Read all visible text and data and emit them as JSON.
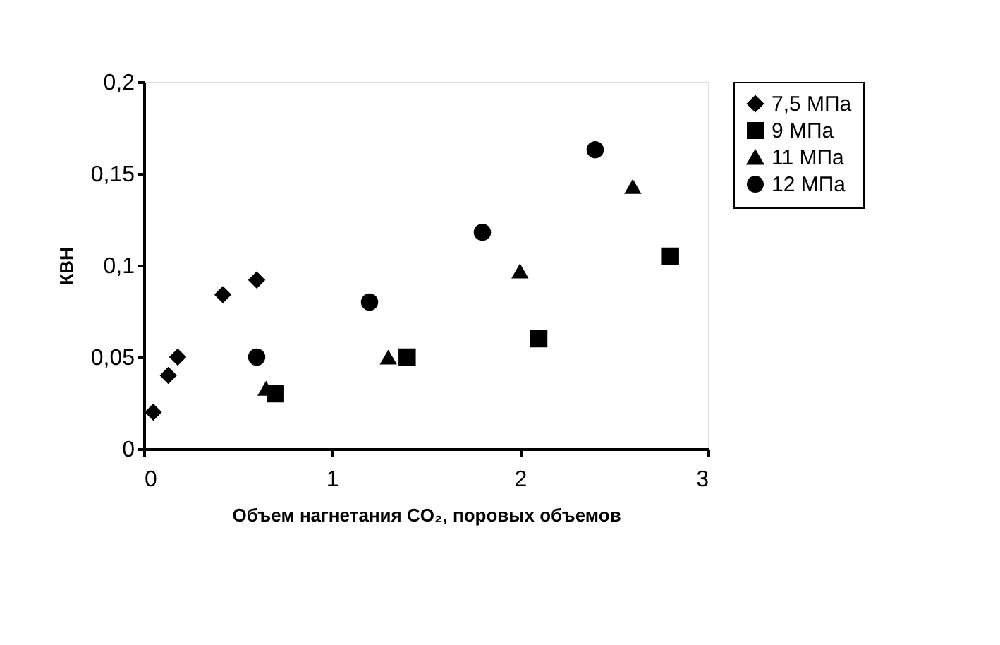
{
  "chart_data": {
    "type": "scatter",
    "xlabel": "Объем нагнетания CO₂, поровых объемов",
    "ylabel": "КВН",
    "xlim": [
      0,
      3
    ],
    "xticks": [
      0,
      1,
      2,
      3
    ],
    "ylim": [
      0,
      0.2
    ],
    "yticks": [
      {
        "value": 0,
        "label": "0"
      },
      {
        "value": 0.05,
        "label": "0,05"
      },
      {
        "value": 0.1,
        "label": "0,1"
      },
      {
        "value": 0.15,
        "label": "0,15"
      },
      {
        "value": 0.2,
        "label": "0,2"
      }
    ],
    "grid": false,
    "legend": "right",
    "series": [
      {
        "name": "7,5 МПа",
        "color": "#000000",
        "marker": "diamond",
        "x": [
          0.05,
          0.13,
          0.18,
          0.42,
          0.6
        ],
        "values": [
          0.02,
          0.04,
          0.05,
          0.084,
          0.092
        ]
      },
      {
        "name": "9 МПа",
        "color": "#000000",
        "marker": "square",
        "x": [
          0.7,
          1.4,
          2.1,
          2.8
        ],
        "values": [
          0.03,
          0.05,
          0.06,
          0.105
        ]
      },
      {
        "name": "11 МПа",
        "color": "#000000",
        "marker": "triangle",
        "x": [
          0.65,
          1.3,
          2.0,
          2.6
        ],
        "values": [
          0.033,
          0.05,
          0.097,
          0.143
        ]
      },
      {
        "name": "12 МПа",
        "color": "#000000",
        "marker": "circle",
        "x": [
          0.6,
          1.2,
          1.8,
          2.4
        ],
        "values": [
          0.05,
          0.08,
          0.118,
          0.163
        ]
      }
    ]
  }
}
